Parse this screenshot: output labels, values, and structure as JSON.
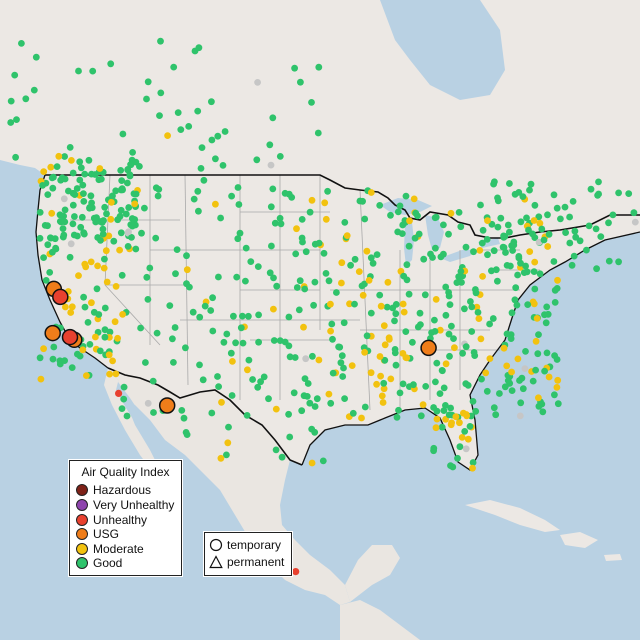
{
  "colors": {
    "land": "#ece8e4",
    "land_mexico": "#eae6e1",
    "water": "#b9d1e3",
    "border": "#111111",
    "state_line": "#a9a9a9",
    "Hazardous": "#7e2218",
    "Very Unhealthy": "#8e44ad",
    "Unhealthy": "#e8412f",
    "USG": "#ef7d1a",
    "Moderate": "#f2c20f",
    "Good": "#2fc36b",
    "unknown": "#c6c6c6"
  },
  "legend": {
    "title": "Air Quality Index",
    "items": [
      "Hazardous",
      "Very Unhealthy",
      "Unhealthy",
      "USG",
      "Moderate",
      "Good"
    ]
  },
  "type_legend": {
    "items": [
      {
        "shape": "circle",
        "label": "temporary"
      },
      {
        "shape": "triangle",
        "label": "permanent"
      }
    ]
  },
  "monitors": [
    {
      "lat": 40.5,
      "lon": -121.5,
      "aqi": "USG",
      "big": true
    },
    {
      "lat": 39.9,
      "lon": -120.9,
      "aqi": "Unhealthy",
      "big": true
    },
    {
      "lat": 37.2,
      "lon": -121.6,
      "aqi": "USG",
      "big": true
    },
    {
      "lat": 36.7,
      "lon": -119.6,
      "aqi": "USG",
      "big": true
    },
    {
      "lat": 36.9,
      "lon": -120.0,
      "aqi": "Unhealthy",
      "big": true
    },
    {
      "lat": 36.1,
      "lon": -86.8,
      "aqi": "USG",
      "big": true
    },
    {
      "lat": 31.8,
      "lon": -111.0,
      "aqi": "USG",
      "big": true
    },
    {
      "lat": 32.7,
      "lon": -115.5,
      "aqi": "Unhealthy",
      "big": false
    },
    {
      "lat": 19.4,
      "lon": -99.1,
      "aqi": "Unhealthy",
      "big": false
    }
  ]
}
